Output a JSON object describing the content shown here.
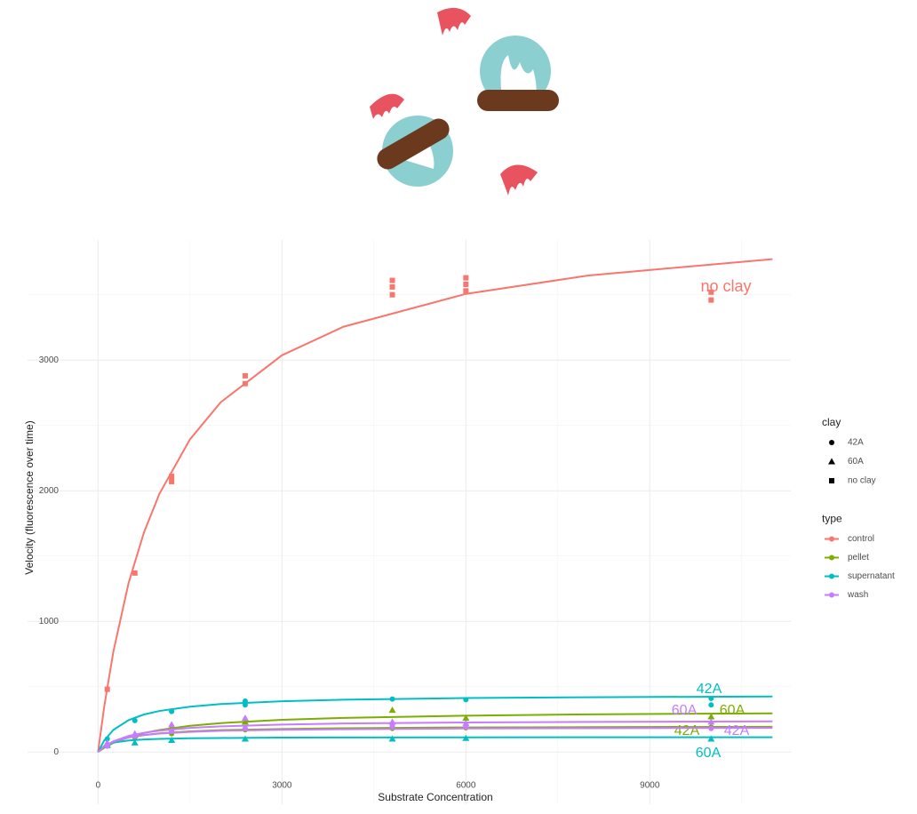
{
  "chart_data": {
    "type": "scatter",
    "x_label": "Substrate Concentration",
    "y_label": "Velocity (fluorescence over time)",
    "xlim": [
      -1150,
      11300
    ],
    "ylim": [
      -400,
      3920
    ],
    "xticks": [
      0,
      3000,
      6000,
      9000
    ],
    "yticks": [
      0,
      1000,
      2000,
      3000
    ],
    "grid": true,
    "legend_position": "right",
    "legends": [
      {
        "title": "clay",
        "items": [
          "42A",
          "60A",
          "no clay"
        ],
        "shapes": [
          "circle",
          "triangle",
          "square"
        ]
      },
      {
        "title": "type",
        "items": [
          "control",
          "pellet",
          "supernatant",
          "wash"
        ],
        "colors": [
          "#f8766d",
          "#7cae00",
          "#00bfc4",
          "#c77cff"
        ]
      }
    ],
    "curve_x": [
      0,
      100,
      250,
      500,
      750,
      1000,
      1500,
      2000,
      3000,
      4000,
      6000,
      8000,
      11000
    ],
    "series": [
      {
        "label": "no clay",
        "color": "#f8766d",
        "shape": "square",
        "x": [
          150,
          600,
          1200,
          1200,
          2400,
          2400,
          4800,
          4800,
          4800,
          6000,
          6000,
          6000,
          10000,
          10000
        ],
        "values": [
          480,
          1370,
          2070,
          2110,
          2820,
          2880,
          3500,
          3560,
          3610,
          3530,
          3580,
          3630,
          3460,
          3520
        ],
        "fit": [
          0,
          346,
          769,
          1297,
          1682,
          1976,
          2394,
          2677,
          3037,
          3255,
          3507,
          3648,
          3773
        ]
      },
      {
        "label": "42A",
        "color": "#7cae00",
        "shape": "circle",
        "x": [
          150,
          600,
          1200,
          2400,
          4800,
          6000,
          10000
        ],
        "values": [
          50,
          110,
          140,
          170,
          180,
          185,
          190
        ],
        "fit": [
          0,
          40,
          77,
          111,
          130,
          143,
          158,
          167,
          176,
          182,
          188,
          190,
          193
        ]
      },
      {
        "label": "60A",
        "color": "#7cae00",
        "shape": "triangle",
        "x": [
          150,
          600,
          1200,
          2400,
          4800,
          6000,
          10000
        ],
        "values": [
          60,
          130,
          190,
          230,
          320,
          260,
          270
        ],
        "fit": [
          0,
          32,
          70,
          114,
          145,
          168,
          200,
          221,
          246,
          261,
          278,
          288,
          296
        ]
      },
      {
        "label": "42A",
        "color": "#00bfc4",
        "shape": "circle",
        "x": [
          150,
          600,
          1200,
          2400,
          2400,
          4800,
          6000,
          10000,
          10000
        ],
        "values": [
          100,
          240,
          310,
          360,
          390,
          405,
          400,
          360,
          410
        ],
        "fit": [
          0,
          88,
          169,
          244,
          287,
          314,
          347,
          367,
          388,
          400,
          413,
          419,
          425
        ]
      },
      {
        "label": "60A",
        "color": "#00bfc4",
        "shape": "triangle",
        "x": [
          150,
          600,
          1200,
          2400,
          4800,
          6000,
          10000
        ],
        "values": [
          50,
          70,
          90,
          100,
          100,
          105,
          100
        ],
        "fit": [
          0,
          46,
          72,
          88,
          96,
          100,
          105,
          107,
          110,
          111,
          112,
          113,
          113
        ]
      },
      {
        "label": "42A",
        "color": "#c77cff",
        "shape": "circle",
        "x": [
          150,
          600,
          1200,
          2400,
          4800,
          6000,
          10000
        ],
        "values": [
          45,
          120,
          160,
          180,
          200,
          190,
          180
        ],
        "fit": [
          0,
          42,
          79,
          112,
          129,
          141,
          154,
          162,
          170,
          174,
          180,
          182,
          184
        ]
      },
      {
        "label": "60A",
        "color": "#c77cff",
        "shape": "triangle",
        "x": [
          150,
          600,
          1200,
          2400,
          4800,
          6000,
          10000
        ],
        "values": [
          70,
          140,
          210,
          260,
          230,
          220,
          230
        ],
        "fit": [
          0,
          41,
          82,
          123,
          147,
          163,
          184,
          196,
          210,
          218,
          226,
          230,
          234
        ]
      }
    ]
  }
}
